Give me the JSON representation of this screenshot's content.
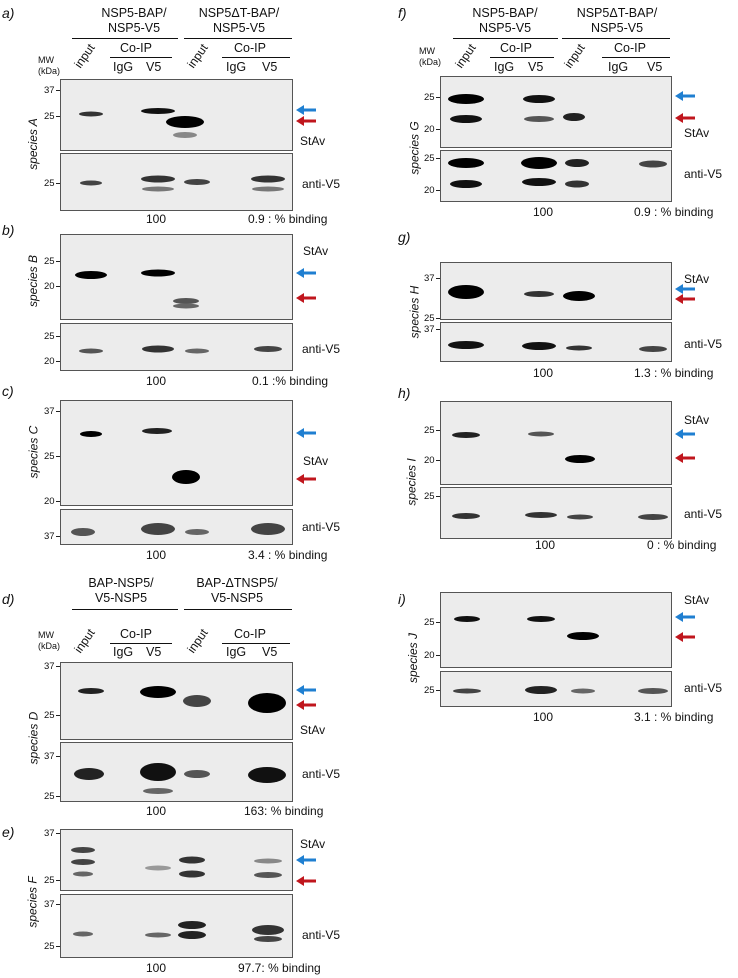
{
  "panels": {
    "a": "a)",
    "b": "b)",
    "c": "c)",
    "d": "d)",
    "e": "e)",
    "f": "f)",
    "g": "g)",
    "h": "h)",
    "i": "i)"
  },
  "headers": {
    "left_top": {
      "g1": [
        "NSP5-BAP/",
        "NSP5-V5"
      ],
      "g2": [
        "NSP5ΔT-BAP/",
        "NSP5-V5"
      ]
    },
    "left_mid": {
      "g1": [
        "BAP-NSP5/",
        "V5-NSP5"
      ],
      "g2": [
        "BAP-ΔTNSP5/",
        "V5-NSP5"
      ]
    },
    "right_top": {
      "g1": [
        "NSP5-BAP/",
        "NSP5-V5"
      ],
      "g2": [
        "NSP5ΔT-BAP/",
        "NSP5-V5"
      ]
    }
  },
  "lanes": {
    "input": "input",
    "coip": "Co-IP",
    "igg": "IgG",
    "v5": "V5"
  },
  "mw_label": [
    "MW",
    "(kDa)"
  ],
  "labels": {
    "stav": "StAv",
    "antiv5": "anti-V5"
  },
  "species": {
    "A": "species A",
    "B": "species B",
    "C": "species C",
    "D": "species D",
    "F": "species F",
    "G": "species G",
    "H": "species H",
    "I": "species I",
    "J": "species J"
  },
  "ticks": {
    "a_top": [
      "37",
      "25"
    ],
    "a_bot": [
      "25"
    ],
    "b_top": [
      "25",
      "20"
    ],
    "b_bot": [
      "25",
      "20"
    ],
    "c_top": [
      "37",
      "25",
      "20"
    ],
    "c_bot": [
      "37"
    ],
    "d_top": [
      "37",
      "25"
    ],
    "d_bot": [
      "37",
      "25"
    ],
    "e_top": [
      "37",
      "25"
    ],
    "e_bot": [
      "37",
      "25"
    ],
    "g_top": [
      "25",
      "20"
    ],
    "g_bot": [
      "25",
      "20"
    ],
    "h_top": [
      "37",
      "25"
    ],
    "h_bot": [
      "37"
    ],
    "i_top": [
      "25",
      "20"
    ],
    "i_bot": [
      "25"
    ],
    "j_top": [
      "25",
      "20"
    ],
    "j_bot": [
      "25"
    ]
  },
  "pct": {
    "a": [
      "100",
      "0.9 : % binding"
    ],
    "b": [
      "100",
      "0.1 :% binding"
    ],
    "c": [
      "100",
      "3.4 : % binding"
    ],
    "d": [
      "100",
      "163: % binding"
    ],
    "e": [
      "100",
      "97.7: % binding"
    ],
    "f": [
      "100",
      "0.9 : % binding"
    ],
    "g": [
      "100",
      "1.3 : % binding"
    ],
    "h": [
      "100",
      "0  : % binding"
    ],
    "i": [
      "100",
      "3.1 : % binding"
    ]
  },
  "colors": {
    "blue_arrow": "#1f7fd1",
    "red_arrow": "#c0161d"
  }
}
